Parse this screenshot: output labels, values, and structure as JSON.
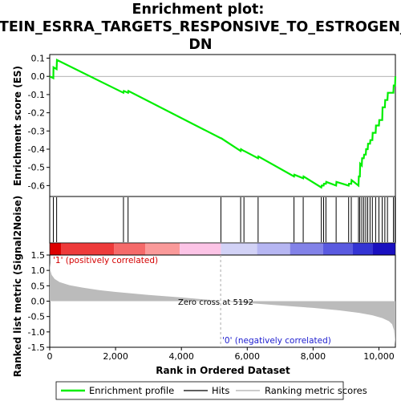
{
  "chart_data": {
    "type": "line",
    "title": "Enrichment plot:\nSTEIN_ESRRA_TARGETS_RESPONSIVE_TO_ESTROGEN_\nDN",
    "panels": {
      "enrichment": {
        "ylabel": "Enrichment score (ES)",
        "ylim": [
          -0.66,
          0.12
        ],
        "yticks": [
          -0.6,
          -0.5,
          -0.4,
          -0.3,
          -0.2,
          -0.1,
          0.0,
          0.1
        ],
        "ytick_labels": [
          "-0.6",
          "-0.5",
          "-0.4",
          "-0.3",
          "-0.2",
          "-0.1",
          "0.0",
          "0.1"
        ],
        "series": [
          {
            "name": "Enrichment profile",
            "color": "#00ee00",
            "x": [
              0,
              110,
              115,
              210,
              220,
              2240,
              2250,
              2380,
              2390,
              5200,
              5210,
              5800,
              5810,
              5900,
              5910,
              6330,
              6340,
              7420,
              7430,
              7700,
              7710,
              8250,
              8260,
              8320,
              8330,
              8390,
              8400,
              8700,
              8710,
              9080,
              9090,
              9160,
              9170,
              9380,
              9390,
              9420,
              9430,
              9480,
              9490,
              9540,
              9550,
              9600,
              9610,
              9660,
              9670,
              9730,
              9740,
              9800,
              9810,
              9900,
              9910,
              10000,
              10010,
              10100,
              10110,
              10180,
              10190,
              10260,
              10270,
              10440,
              10450,
              10490,
              10500
            ],
            "y": [
              0.0,
              -0.01,
              0.05,
              0.04,
              0.09,
              -0.09,
              -0.08,
              -0.09,
              -0.08,
              -0.34,
              -0.34,
              -0.41,
              -0.4,
              -0.41,
              -0.41,
              -0.45,
              -0.44,
              -0.55,
              -0.54,
              -0.56,
              -0.55,
              -0.61,
              -0.6,
              -0.6,
              -0.59,
              -0.59,
              -0.58,
              -0.6,
              -0.58,
              -0.6,
              -0.59,
              -0.59,
              -0.57,
              -0.6,
              -0.55,
              -0.55,
              -0.48,
              -0.49,
              -0.45,
              -0.45,
              -0.43,
              -0.43,
              -0.4,
              -0.4,
              -0.37,
              -0.37,
              -0.35,
              -0.35,
              -0.31,
              -0.31,
              -0.27,
              -0.27,
              -0.24,
              -0.24,
              -0.17,
              -0.17,
              -0.13,
              -0.13,
              -0.09,
              -0.09,
              -0.05,
              -0.05,
              0.0
            ]
          }
        ]
      },
      "hits": {
        "name": "Hits",
        "positions": [
          110,
          210,
          2240,
          2380,
          5200,
          5800,
          5900,
          6330,
          7420,
          7700,
          8250,
          8320,
          8390,
          8700,
          9080,
          9160,
          9380,
          9420,
          9480,
          9540,
          9600,
          9660,
          9730,
          9800,
          9900,
          10000,
          10100,
          10180,
          10260,
          10440,
          10490
        ]
      },
      "ranking": {
        "name": "Ranking metric scores",
        "ylabel": "Ranked list metric (Signal2Noise)",
        "xlabel": "Rank in Ordered Dataset",
        "ylim": [
          -1.5,
          1.5
        ],
        "yticks": [
          -1.5,
          -1.0,
          -0.5,
          0.0,
          0.5,
          1.0,
          1.5
        ],
        "ytick_labels": [
          "-1.5",
          "-1.0",
          "-0.5",
          "0.0",
          "0.5",
          "1.0",
          "1.5"
        ],
        "profile_x": [
          0,
          20,
          60,
          150,
          300,
          600,
          1000,
          1500,
          2000,
          3000,
          4000,
          5000,
          5192,
          6000,
          7000,
          8000,
          8800,
          9400,
          9800,
          10100,
          10300,
          10400,
          10460,
          10500
        ],
        "profile_y": [
          1.25,
          1.0,
          0.85,
          0.72,
          0.62,
          0.52,
          0.44,
          0.36,
          0.3,
          0.2,
          0.12,
          0.03,
          0.0,
          -0.06,
          -0.14,
          -0.22,
          -0.3,
          -0.38,
          -0.46,
          -0.55,
          -0.65,
          -0.75,
          -0.95,
          -1.4
        ],
        "pos_label": "'1' (positively correlated)",
        "neg_label": "'0' (negatively correlated)",
        "zero_cross_label": "Zero cross at 5192",
        "zero_cross": 5192
      },
      "color_bar": {
        "segments": [
          {
            "x0": 0,
            "x1": 350,
            "color": "#dd0000"
          },
          {
            "x0": 350,
            "x1": 1950,
            "color": "#ee3a3a"
          },
          {
            "x0": 1950,
            "x1": 2900,
            "color": "#f56a6a"
          },
          {
            "x0": 2900,
            "x1": 3950,
            "color": "#fa9a9a"
          },
          {
            "x0": 3950,
            "x1": 5200,
            "color": "#fcc4e6"
          },
          {
            "x0": 5200,
            "x1": 6300,
            "color": "#d2d2f6"
          },
          {
            "x0": 6300,
            "x1": 7300,
            "color": "#b6b6f2"
          },
          {
            "x0": 7300,
            "x1": 8300,
            "color": "#8282e8"
          },
          {
            "x0": 8300,
            "x1": 9200,
            "color": "#5a5ae0"
          },
          {
            "x0": 9200,
            "x1": 9800,
            "color": "#3434d4"
          },
          {
            "x0": 9800,
            "x1": 10500,
            "color": "#1a10c0"
          }
        ]
      }
    },
    "xlim": [
      0,
      10500
    ],
    "xticks": [
      0,
      2000,
      4000,
      6000,
      8000,
      10000
    ],
    "xtick_labels": [
      "0",
      "2,000",
      "4,000",
      "6,000",
      "8,000",
      "10,000"
    ],
    "grid": false,
    "legend_position": "bottom"
  },
  "legend": {
    "profile": "Enrichment profile",
    "hits": "Hits",
    "ranking": "Ranking metric scores"
  },
  "colors": {
    "profile": "#00ee00",
    "hit_line": "#000000",
    "ranking_fill": "#bbbbbb",
    "zero_line": "#aaaaaa"
  }
}
